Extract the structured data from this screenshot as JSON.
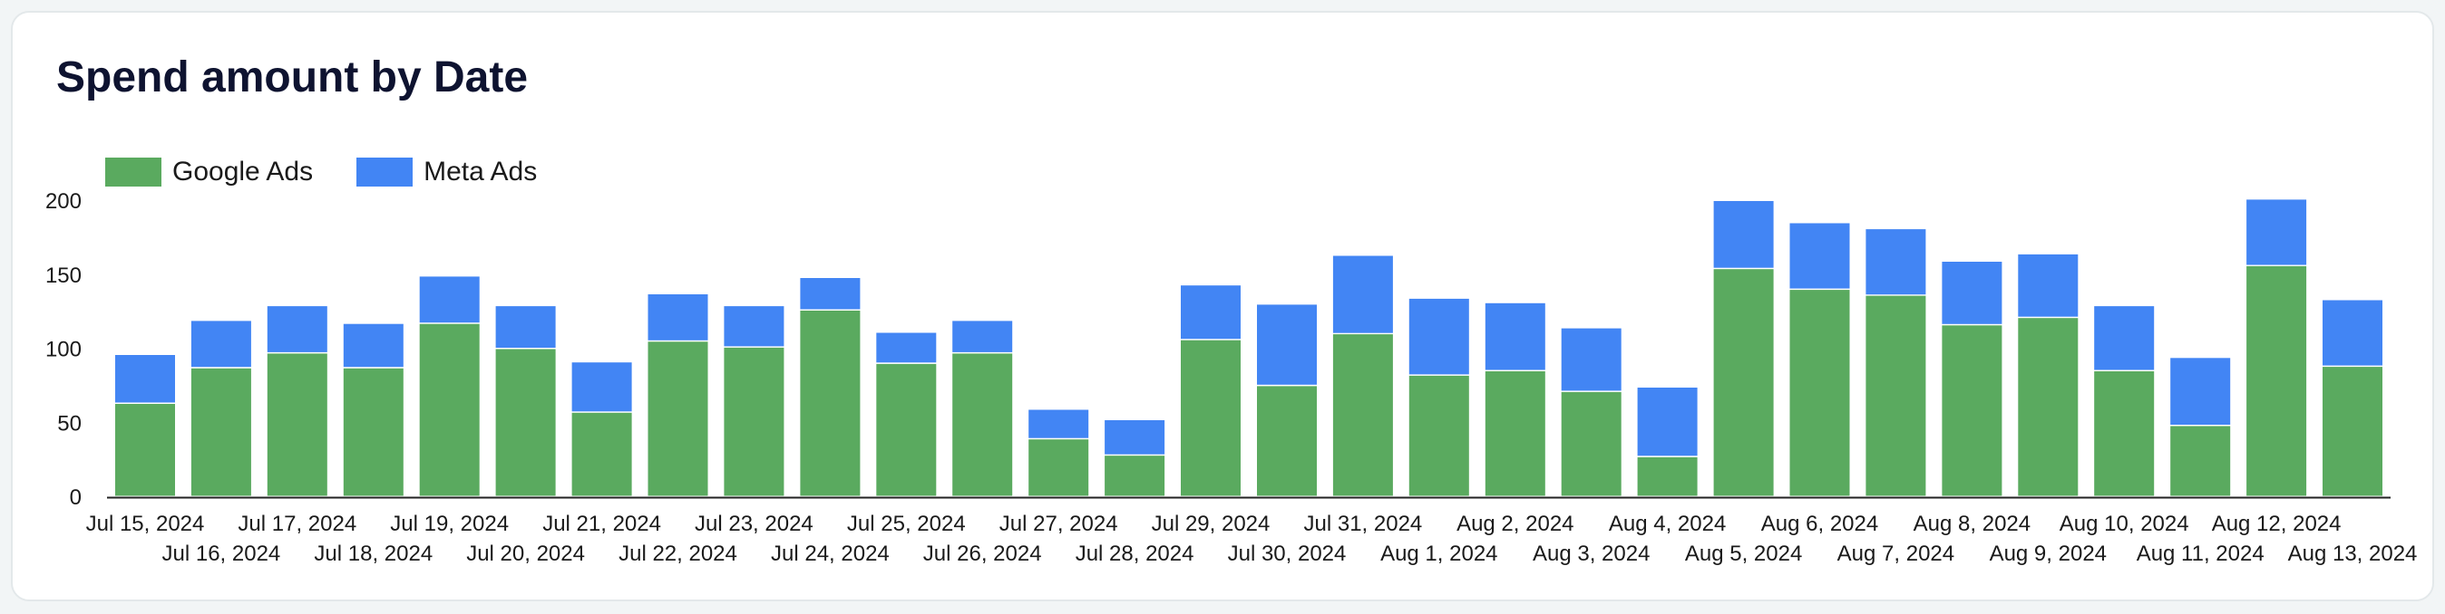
{
  "colors": {
    "google": "#5aaa5f",
    "meta": "#4285f4",
    "axis": "#222222"
  },
  "legend": {
    "google_label": "Google Ads",
    "meta_label": "Meta Ads"
  },
  "chart_data": {
    "type": "bar",
    "stacked": true,
    "title": "Spend amount by Date",
    "xlabel": "",
    "ylabel": "",
    "ylim": [
      0,
      200
    ],
    "yticks": [
      0,
      50,
      100,
      150,
      200
    ],
    "legend_position": "top-left",
    "categories": [
      "Jul 15, 2024",
      "Jul 16, 2024",
      "Jul 17, 2024",
      "Jul 18, 2024",
      "Jul 19, 2024",
      "Jul 20, 2024",
      "Jul 21, 2024",
      "Jul 22, 2024",
      "Jul 23, 2024",
      "Jul 24, 2024",
      "Jul 25, 2024",
      "Jul 26, 2024",
      "Jul 27, 2024",
      "Jul 28, 2024",
      "Jul 29, 2024",
      "Jul 30, 2024",
      "Jul 31, 2024",
      "Aug 1, 2024",
      "Aug 2, 2024",
      "Aug 3, 2024",
      "Aug 4, 2024",
      "Aug 5, 2024",
      "Aug 6, 2024",
      "Aug 7, 2024",
      "Aug 8, 2024",
      "Aug 9, 2024",
      "Aug 10, 2024",
      "Aug 11, 2024",
      "Aug 12, 2024",
      "Aug 13, 2024"
    ],
    "series": [
      {
        "name": "Google Ads",
        "values": [
          63,
          87,
          97,
          87,
          117,
          100,
          57,
          105,
          101,
          126,
          90,
          97,
          39,
          28,
          106,
          75,
          110,
          82,
          85,
          71,
          27,
          154,
          140,
          136,
          116,
          121,
          85,
          48,
          156,
          88
        ]
      },
      {
        "name": "Meta Ads",
        "values": [
          33,
          32,
          32,
          30,
          32,
          29,
          34,
          32,
          28,
          22,
          21,
          22,
          20,
          24,
          37,
          55,
          53,
          52,
          46,
          43,
          47,
          46,
          45,
          45,
          43,
          43,
          44,
          46,
          45,
          45
        ]
      }
    ]
  }
}
